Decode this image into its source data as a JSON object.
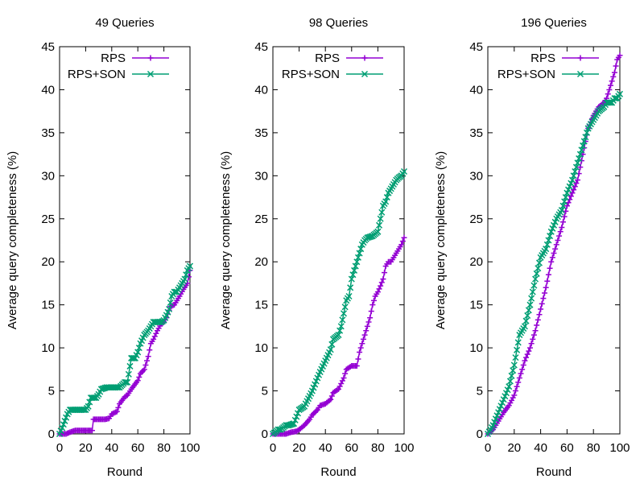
{
  "chart_data": [
    {
      "type": "line",
      "title": "49 Queries",
      "xlabel": "Round",
      "ylabel": "Average query completeness (%)",
      "xlim": [
        0,
        100
      ],
      "ylim": [
        0,
        45
      ],
      "xticks": [
        0,
        20,
        40,
        60,
        80,
        100
      ],
      "yticks": [
        0,
        5,
        10,
        15,
        20,
        25,
        30,
        35,
        40,
        45
      ],
      "grid": false,
      "legend_position": "top-right",
      "series": [
        {
          "name": "RPS",
          "color": "#9400d3",
          "marker": "plus",
          "x": [
            0,
            5,
            8,
            10,
            12,
            14,
            20,
            25,
            26,
            30,
            35,
            38,
            40,
            44,
            46,
            50,
            52,
            55,
            58,
            60,
            62,
            65,
            68,
            70,
            72,
            75,
            78,
            80,
            82,
            85,
            88,
            90,
            92,
            95,
            98,
            100
          ],
          "y": [
            0,
            0,
            0.2,
            0.3,
            0.4,
            0.4,
            0.4,
            0.4,
            1.7,
            1.7,
            1.7,
            1.8,
            2.3,
            2.6,
            3.5,
            4.3,
            4.5,
            5.2,
            5.8,
            6.2,
            7.0,
            7.5,
            9.0,
            10.5,
            11.0,
            12.0,
            12.8,
            13.0,
            13.5,
            14.8,
            15.0,
            15.5,
            16.0,
            16.8,
            17.5,
            19.0
          ]
        },
        {
          "name": "RPS+SON",
          "color": "#009e73",
          "marker": "cross",
          "x": [
            0,
            2,
            4,
            6,
            8,
            10,
            14,
            20,
            22,
            24,
            28,
            30,
            32,
            36,
            40,
            44,
            46,
            50,
            52,
            55,
            58,
            60,
            62,
            65,
            68,
            70,
            72,
            75,
            78,
            80,
            82,
            84,
            86,
            88,
            90,
            92,
            94,
            96,
            98,
            100
          ],
          "y": [
            0,
            0.7,
            1.5,
            2.3,
            2.8,
            2.8,
            2.8,
            2.8,
            3.2,
            4.2,
            4.2,
            4.6,
            5.2,
            5.4,
            5.4,
            5.4,
            5.4,
            6.0,
            6.0,
            8.8,
            8.8,
            9.5,
            10.5,
            11.5,
            12.0,
            12.5,
            13.0,
            13.0,
            13.0,
            13.2,
            13.8,
            14.5,
            16.0,
            16.5,
            16.5,
            17.0,
            17.5,
            18.0,
            19.0,
            19.5
          ]
        }
      ]
    },
    {
      "type": "line",
      "title": "98 Queries",
      "xlabel": "Round",
      "ylabel": "Average query completeness (%)",
      "xlim": [
        0,
        100
      ],
      "ylim": [
        0,
        45
      ],
      "xticks": [
        0,
        20,
        40,
        60,
        80,
        100
      ],
      "yticks": [
        0,
        5,
        10,
        15,
        20,
        25,
        30,
        35,
        40,
        45
      ],
      "grid": false,
      "legend_position": "top-right",
      "series": [
        {
          "name": "RPS",
          "color": "#9400d3",
          "marker": "plus",
          "x": [
            0,
            10,
            14,
            18,
            20,
            24,
            28,
            30,
            34,
            36,
            40,
            44,
            46,
            50,
            54,
            56,
            60,
            64,
            66,
            68,
            70,
            72,
            74,
            76,
            78,
            80,
            82,
            84,
            86,
            88,
            90,
            92,
            94,
            96,
            98,
            100
          ],
          "y": [
            0,
            0,
            0.2,
            0.3,
            0.5,
            1.0,
            1.7,
            2.2,
            2.8,
            3.3,
            3.5,
            4.0,
            4.8,
            5.2,
            6.5,
            7.5,
            7.9,
            7.9,
            9.5,
            10.5,
            11.5,
            12.5,
            13.5,
            15.0,
            16.0,
            16.5,
            17.2,
            18.0,
            19.5,
            20.0,
            20.0,
            20.5,
            21.0,
            21.5,
            22.0,
            22.8
          ]
        },
        {
          "name": "RPS+SON",
          "color": "#009e73",
          "marker": "cross",
          "x": [
            0,
            4,
            6,
            10,
            12,
            16,
            18,
            20,
            24,
            26,
            30,
            34,
            36,
            40,
            44,
            46,
            50,
            52,
            54,
            56,
            58,
            60,
            62,
            64,
            66,
            68,
            70,
            72,
            76,
            80,
            82,
            84,
            86,
            88,
            90,
            92,
            94,
            96,
            98,
            100
          ],
          "y": [
            0,
            0.5,
            0.5,
            1.0,
            1.0,
            1.2,
            2.0,
            2.8,
            3.2,
            3.8,
            5.0,
            6.5,
            7.2,
            8.5,
            9.8,
            11.0,
            11.5,
            12.5,
            14.0,
            15.5,
            16.0,
            18.0,
            19.0,
            20.0,
            21.0,
            22.0,
            22.5,
            22.8,
            23.0,
            23.5,
            25.0,
            26.5,
            27.0,
            28.0,
            28.5,
            29.0,
            29.5,
            29.8,
            30.0,
            30.5
          ]
        }
      ]
    },
    {
      "type": "line",
      "title": "196 Queries",
      "xlabel": "Round",
      "ylabel": "Average query completeness (%)",
      "xlim": [
        0,
        100
      ],
      "ylim": [
        0,
        45
      ],
      "xticks": [
        0,
        20,
        40,
        60,
        80,
        100
      ],
      "yticks": [
        0,
        5,
        10,
        15,
        20,
        25,
        30,
        35,
        40,
        45
      ],
      "grid": false,
      "legend_position": "top-right",
      "series": [
        {
          "name": "RPS",
          "color": "#9400d3",
          "marker": "plus",
          "x": [
            0,
            4,
            8,
            12,
            16,
            20,
            24,
            28,
            32,
            36,
            40,
            44,
            48,
            52,
            56,
            60,
            64,
            68,
            72,
            76,
            80,
            84,
            88,
            90,
            92,
            94,
            96,
            98,
            100
          ],
          "y": [
            0,
            0.5,
            1.5,
            2.5,
            3.3,
            4.5,
            6.5,
            8.5,
            10.0,
            12.0,
            14.5,
            17.0,
            20.0,
            22.0,
            24.0,
            26.5,
            28.0,
            29.5,
            32.5,
            35.5,
            37.0,
            38.0,
            38.5,
            39.0,
            40.0,
            41.0,
            42.0,
            43.5,
            44.0
          ]
        },
        {
          "name": "RPS+SON",
          "color": "#009e73",
          "marker": "cross",
          "x": [
            0,
            4,
            8,
            12,
            16,
            20,
            24,
            28,
            32,
            36,
            40,
            44,
            48,
            52,
            56,
            60,
            64,
            68,
            72,
            76,
            80,
            84,
            88,
            90,
            92,
            94,
            96,
            98,
            100
          ],
          "y": [
            0,
            1.0,
            2.5,
            4.0,
            5.5,
            8.0,
            11.5,
            12.5,
            15.0,
            18.0,
            20.5,
            21.5,
            23.5,
            25.0,
            26.0,
            28.0,
            29.5,
            31.5,
            33.5,
            35.5,
            36.5,
            37.5,
            38.0,
            38.5,
            38.5,
            38.5,
            39.0,
            39.0,
            39.5
          ]
        }
      ]
    }
  ]
}
